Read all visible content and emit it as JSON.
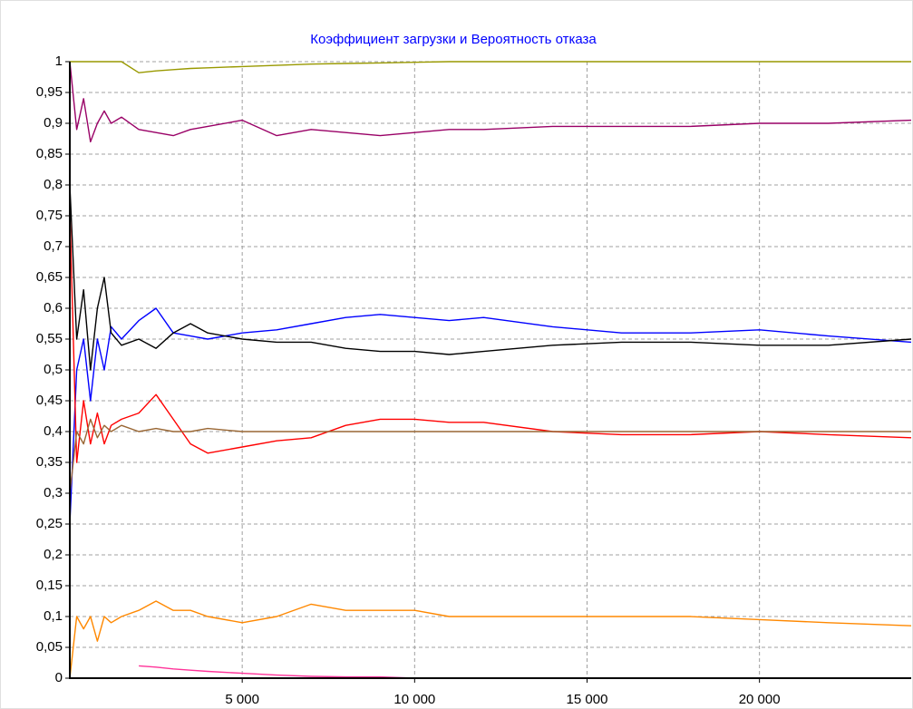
{
  "chart_data": {
    "type": "line",
    "title": "Коэффициент загрузки и Вероятность отказа",
    "x": [
      0,
      200,
      400,
      600,
      800,
      1000,
      1200,
      1500,
      2000,
      2500,
      3000,
      3500,
      4000,
      5000,
      6000,
      7000,
      8000,
      9000,
      10000,
      11000,
      12000,
      14000,
      16000,
      18000,
      20000,
      22000,
      24400
    ],
    "series": [
      {
        "color": "#999900",
        "values": [
          1,
          1,
          1,
          1,
          1,
          1,
          1,
          1,
          0.982,
          0.985,
          0.987,
          0.989,
          0.99,
          0.992,
          0.994,
          0.996,
          0.997,
          0.998,
          0.999,
          1,
          1,
          1,
          1,
          1,
          1,
          1,
          1
        ]
      },
      {
        "color": "#990066",
        "values": [
          1,
          0.89,
          0.94,
          0.87,
          0.9,
          0.92,
          0.9,
          0.91,
          0.89,
          0.885,
          0.88,
          0.89,
          0.895,
          0.905,
          0.88,
          0.89,
          0.885,
          0.88,
          0.885,
          0.89,
          0.89,
          0.895,
          0.895,
          0.895,
          0.9,
          0.9,
          0.905
        ]
      },
      {
        "color": "#0000ff",
        "values": [
          0.25,
          0.5,
          0.55,
          0.45,
          0.55,
          0.5,
          0.57,
          0.55,
          0.58,
          0.6,
          0.56,
          0.555,
          0.55,
          0.56,
          0.565,
          0.575,
          0.585,
          0.59,
          0.585,
          0.58,
          0.585,
          0.57,
          0.56,
          0.56,
          0.565,
          0.555,
          0.545
        ]
      },
      {
        "color": "#000000",
        "values": [
          0.8,
          0.55,
          0.63,
          0.5,
          0.6,
          0.65,
          0.56,
          0.54,
          0.55,
          0.535,
          0.56,
          0.575,
          0.56,
          0.55,
          0.545,
          0.545,
          0.535,
          0.53,
          0.53,
          0.525,
          0.53,
          0.54,
          0.545,
          0.545,
          0.54,
          0.54,
          0.55
        ]
      },
      {
        "color": "#ff0000",
        "values": [
          0.76,
          0.35,
          0.45,
          0.38,
          0.43,
          0.38,
          0.41,
          0.42,
          0.43,
          0.46,
          0.42,
          0.38,
          0.365,
          0.375,
          0.385,
          0.39,
          0.41,
          0.42,
          0.42,
          0.415,
          0.415,
          0.4,
          0.395,
          0.395,
          0.4,
          0.395,
          0.39
        ]
      },
      {
        "color": "#996633",
        "values": [
          0.3,
          0.4,
          0.38,
          0.42,
          0.39,
          0.41,
          0.4,
          0.41,
          0.4,
          0.405,
          0.4,
          0.4,
          0.405,
          0.4,
          0.4,
          0.4,
          0.4,
          0.4,
          0.4,
          0.4,
          0.4,
          0.4,
          0.4,
          0.4,
          0.4,
          0.4,
          0.4
        ]
      },
      {
        "color": "#ff8800",
        "values": [
          0,
          0.1,
          0.08,
          0.1,
          0.06,
          0.1,
          0.09,
          0.1,
          0.11,
          0.125,
          0.11,
          0.11,
          0.1,
          0.09,
          0.1,
          0.12,
          0.11,
          0.11,
          0.11,
          0.1,
          0.1,
          0.1,
          0.1,
          0.1,
          0.095,
          0.09,
          0.085
        ]
      },
      {
        "color": "#ff3399",
        "values": [
          null,
          null,
          null,
          null,
          null,
          null,
          null,
          null,
          0.02,
          0.018,
          0.015,
          0.013,
          0.011,
          0.008,
          0.005,
          0.003,
          0.002,
          0.002,
          0,
          0,
          0,
          0,
          0,
          0,
          0,
          0,
          0
        ]
      }
    ],
    "xlim": [
      0,
      24400
    ],
    "xticks": [
      {
        "value": 5000,
        "label": "5 000"
      },
      {
        "value": 10000,
        "label": "10 000"
      },
      {
        "value": 15000,
        "label": "15 000"
      },
      {
        "value": 20000,
        "label": "20 000"
      }
    ],
    "ylim": [
      0,
      1
    ],
    "yticks": [
      0,
      {
        "value": 0.05,
        "label": "0,05"
      },
      {
        "value": 0.1,
        "label": "0,1"
      },
      {
        "value": 0.15,
        "label": "0,15"
      },
      {
        "value": 0.2,
        "label": "0,2"
      },
      {
        "value": 0.25,
        "label": "0,25"
      },
      {
        "value": 0.3,
        "label": "0,3"
      },
      {
        "value": 0.35,
        "label": "0,35"
      },
      {
        "value": 0.4,
        "label": "0,4"
      },
      {
        "value": 0.45,
        "label": "0,45"
      },
      {
        "value": 0.5,
        "label": "0,5"
      },
      {
        "value": 0.55,
        "label": "0,55"
      },
      {
        "value": 0.6,
        "label": "0,6"
      },
      {
        "value": 0.65,
        "label": "0,65"
      },
      {
        "value": 0.7,
        "label": "0,7"
      },
      {
        "value": 0.75,
        "label": "0,75"
      },
      {
        "value": 0.8,
        "label": "0,8"
      },
      {
        "value": 0.85,
        "label": "0,85"
      },
      {
        "value": 0.9,
        "label": "0,9"
      },
      {
        "value": 0.95,
        "label": "0,95"
      },
      1
    ],
    "grid": true
  }
}
